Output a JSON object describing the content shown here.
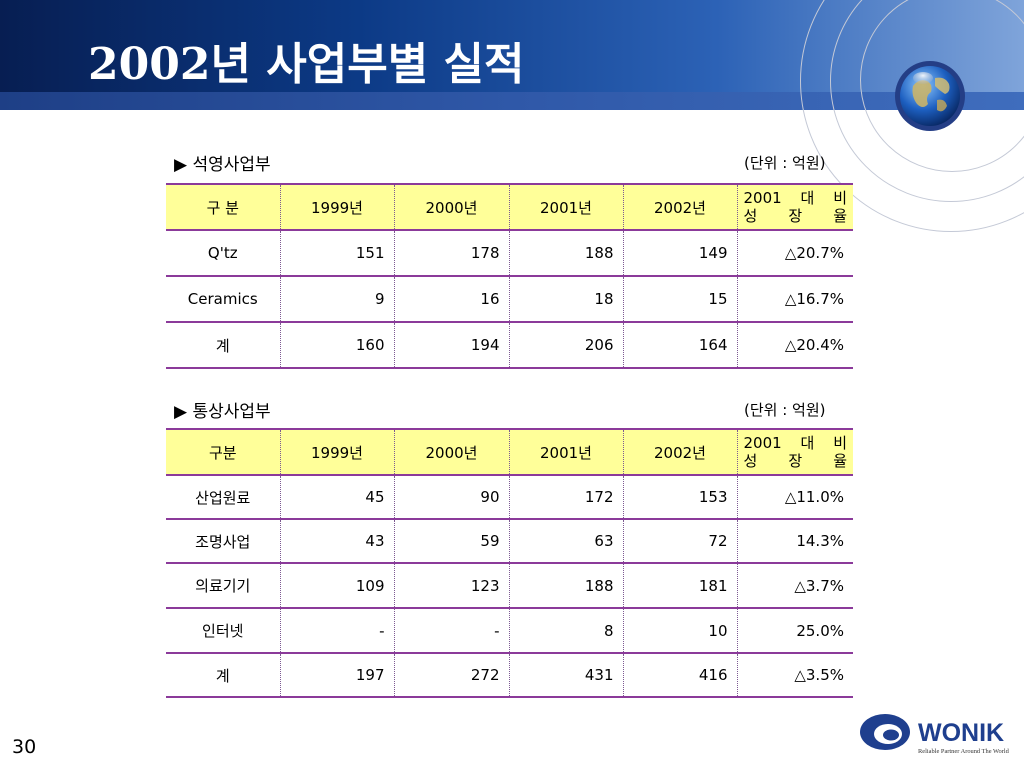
{
  "title": "2002년 사업부별 실적",
  "page_number": "30",
  "logo": {
    "name": "WONIK",
    "tagline": "Reliable Partner Around The World"
  },
  "colors": {
    "header_dark": "#071e52",
    "header_accent": "#2c62b6",
    "table_header_bg": "#ffff99",
    "table_rule": "#8b3a9a"
  },
  "sections": [
    {
      "label": "▶ 석영사업부",
      "unit": "(단위 : 억원)",
      "columns": [
        "구 분",
        "1999년",
        "2000년",
        "2001년",
        "2002년"
      ],
      "growth_header_line1": "2001 대 비",
      "growth_header_line2": "성 장 율",
      "rows": [
        {
          "name": "Q'tz",
          "values": [
            "151",
            "178",
            "188",
            "149",
            "△20.7%"
          ]
        },
        {
          "name": "Ceramics",
          "values": [
            "9",
            "16",
            "18",
            "15",
            "△16.7%"
          ]
        },
        {
          "name": "계",
          "values": [
            "160",
            "194",
            "206",
            "164",
            "△20.4%"
          ]
        }
      ]
    },
    {
      "label": "▶ 통상사업부",
      "unit": "(단위 : 억원)",
      "columns": [
        "구분",
        "1999년",
        "2000년",
        "2001년",
        "2002년"
      ],
      "growth_header_line1": "2001 대 비",
      "growth_header_line2": "성 장 율",
      "rows": [
        {
          "name": "산업원료",
          "values": [
            "45",
            "90",
            "172",
            "153",
            "△11.0%"
          ]
        },
        {
          "name": "조명사업",
          "values": [
            "43",
            "59",
            "63",
            "72",
            "14.3%"
          ]
        },
        {
          "name": "의료기기",
          "values": [
            "109",
            "123",
            "188",
            "181",
            "△3.7%"
          ]
        },
        {
          "name": "인터넷",
          "values": [
            "-",
            "-",
            "8",
            "10",
            "25.0%"
          ]
        },
        {
          "name": "계",
          "values": [
            "197",
            "272",
            "431",
            "416",
            "△3.5%"
          ]
        }
      ]
    }
  ]
}
